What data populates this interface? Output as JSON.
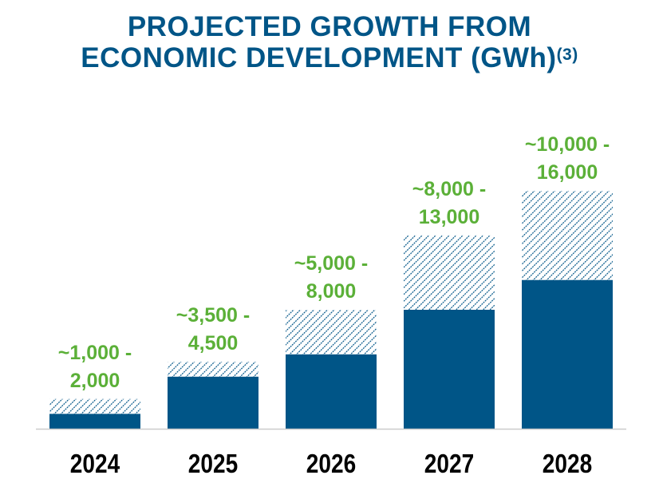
{
  "chart_data": {
    "type": "bar",
    "title_line1": "PROJECTED GROWTH FROM",
    "title_line2": "ECONOMIC DEVELOPMENT (GWh)",
    "title_footnote": "(3)",
    "categories": [
      "2024",
      "2025",
      "2026",
      "2027",
      "2028"
    ],
    "series": [
      {
        "values": [
          1000,
          3500,
          5000,
          8000,
          10000
        ],
        "style": "solid"
      },
      {
        "values": [
          2000,
          4500,
          8000,
          13000,
          16000
        ],
        "style": "hatched"
      }
    ],
    "data_labels": [
      [
        "~1,000 -",
        "2,000"
      ],
      [
        "~3,500 -",
        "4,500"
      ],
      [
        "~5,000 -",
        "8,000"
      ],
      [
        "~8,000 -",
        "13,000"
      ],
      [
        "~10,000 -",
        "16,000"
      ]
    ],
    "ylim": [
      0,
      16000
    ],
    "grid": false,
    "colors": {
      "bar": "#005587",
      "label": "#5BB038",
      "title": "#005587",
      "axis": "#cccccc"
    }
  }
}
